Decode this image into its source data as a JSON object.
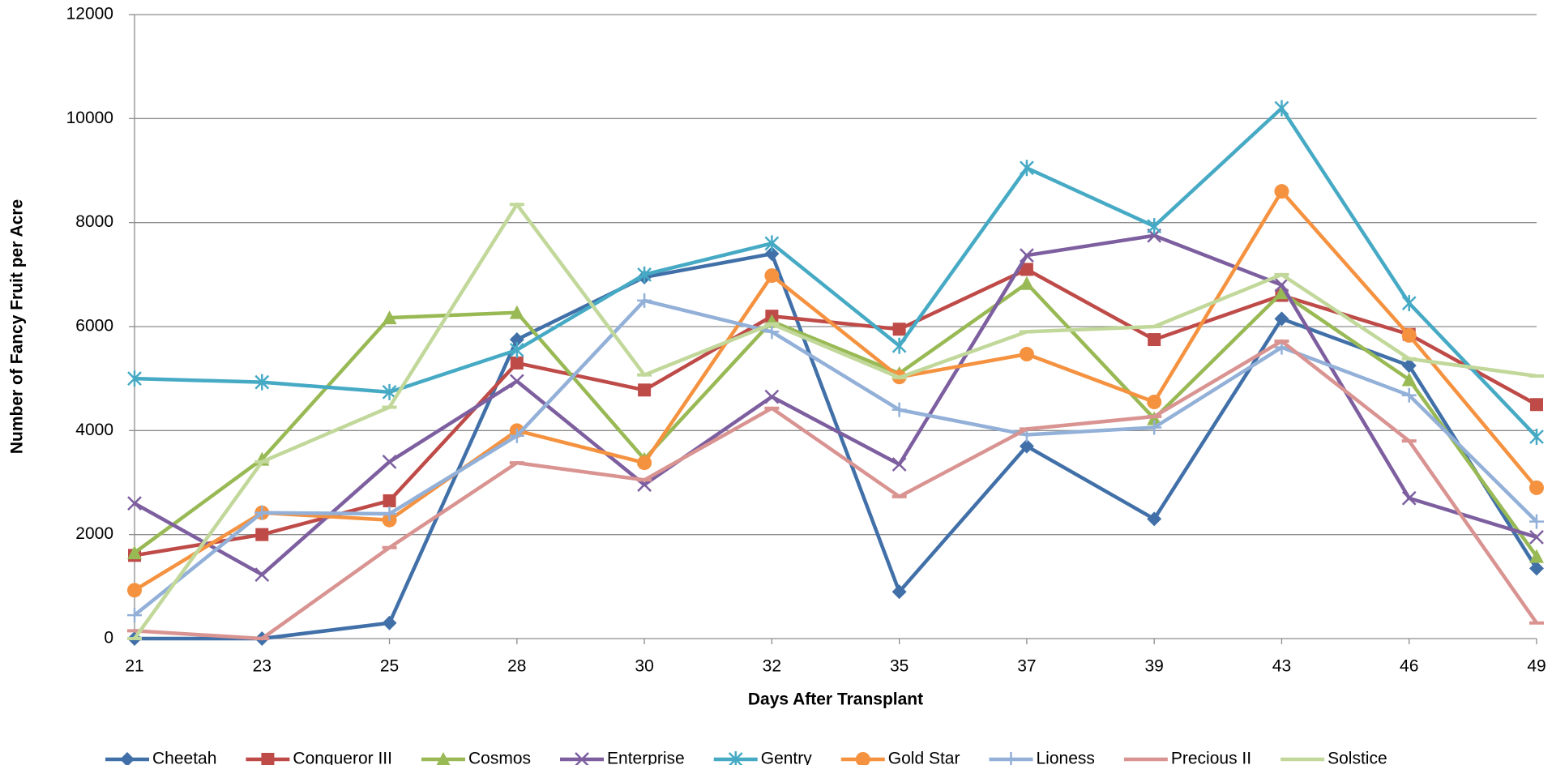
{
  "chart_data": {
    "type": "line",
    "x_label": "Days After Transplant",
    "y_label": "Number of Fancy Fruit per Acre",
    "categories": [
      "21",
      "23",
      "25",
      "28",
      "30",
      "32",
      "35",
      "37",
      "39",
      "43",
      "46",
      "49"
    ],
    "ylim": [
      0,
      12000
    ],
    "yticks": [
      0,
      2000,
      4000,
      6000,
      8000,
      10000,
      12000
    ],
    "grid": true,
    "legend": "bottom",
    "series": [
      {
        "name": "Cheetah",
        "color": "#4170a9",
        "marker": "diamond",
        "values": [
          0,
          0,
          300,
          5750,
          6950,
          7400,
          900,
          3700,
          2300,
          6150,
          5250,
          1350
        ]
      },
      {
        "name": "Conqueror III",
        "color": "#be4b48",
        "marker": "square",
        "values": [
          1600,
          2000,
          2650,
          5300,
          4780,
          6200,
          5950,
          7100,
          5750,
          6600,
          5850,
          4500
        ]
      },
      {
        "name": "Cosmos",
        "color": "#98b954",
        "marker": "triangle",
        "values": [
          1650,
          3450,
          6170,
          6270,
          3450,
          6100,
          5100,
          6830,
          4230,
          6650,
          4980,
          1580
        ]
      },
      {
        "name": "Enterprise",
        "color": "#7d5fa0",
        "marker": "x",
        "values": [
          2600,
          1230,
          3400,
          4950,
          2960,
          4650,
          3350,
          7370,
          7750,
          6800,
          2700,
          1950
        ]
      },
      {
        "name": "Gentry",
        "color": "#46aac5",
        "marker": "asterisk",
        "values": [
          5000,
          4930,
          4740,
          5550,
          7000,
          7600,
          5630,
          9050,
          7930,
          10200,
          6450,
          3880
        ]
      },
      {
        "name": "Gold Star",
        "color": "#f59240",
        "marker": "circle",
        "values": [
          930,
          2420,
          2280,
          4000,
          3380,
          6980,
          5030,
          5470,
          4550,
          8600,
          5830,
          2900
        ]
      },
      {
        "name": "Lioness",
        "color": "#92b0d8",
        "marker": "plus",
        "values": [
          450,
          2420,
          2400,
          3900,
          6500,
          5900,
          4400,
          3920,
          4060,
          5600,
          4680,
          2250
        ]
      },
      {
        "name": "Precious II",
        "color": "#d99391",
        "marker": "dash",
        "values": [
          150,
          0,
          1750,
          3380,
          3050,
          4430,
          2730,
          4030,
          4270,
          5720,
          3800,
          300
        ]
      },
      {
        "name": "Solstice",
        "color": "#c1d89a",
        "marker": "dash",
        "values": [
          0,
          3400,
          4450,
          8350,
          5070,
          6050,
          5020,
          5900,
          6000,
          7000,
          5380,
          5050
        ]
      }
    ]
  }
}
